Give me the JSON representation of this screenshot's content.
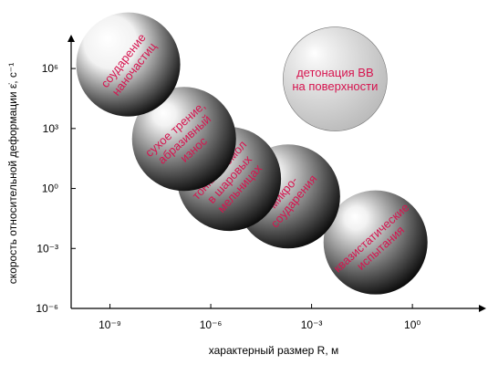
{
  "chart_data": {
    "type": "bubble",
    "xlabel": "характерный размер R, м",
    "ylabel": "скорость относительной деформации ε̇, с⁻¹",
    "xscale": "log",
    "yscale": "log",
    "xlim": [
      7e-11,
      130
    ],
    "ylim": [
      1e-06,
      40000000.0
    ],
    "xticks": [
      {
        "value": 1e-09,
        "label": "10⁻⁹"
      },
      {
        "value": 1e-06,
        "label": "10⁻⁶"
      },
      {
        "value": 0.001,
        "label": "10⁻³"
      },
      {
        "value": 1,
        "label": "10⁰"
      }
    ],
    "yticks": [
      {
        "value": 1e-06,
        "label": "10⁻⁶"
      },
      {
        "value": 0.001,
        "label": "10⁻³"
      },
      {
        "value": 1,
        "label": "10⁰"
      },
      {
        "value": 1000,
        "label": "10³"
      },
      {
        "value": 1000000,
        "label": "10⁶"
      }
    ],
    "label_color": "#d6144f",
    "points": [
      {
        "label": [
          "соударение",
          "наночастиц"
        ],
        "x": 3.5e-09,
        "y": 1600000,
        "color": "#000000"
      },
      {
        "label": [
          "сухое трение,",
          "абразивный",
          "износ"
        ],
        "x": 1.6e-07,
        "y": 300,
        "color": "#000000"
      },
      {
        "label": [
          "тонкий помол",
          "в шаровых",
          "мельницах"
        ],
        "x": 3.5e-06,
        "y": 3,
        "color": "#000000"
      },
      {
        "label": [
          "микро-",
          "соударения"
        ],
        "x": 0.0002,
        "y": 0.4,
        "color": "#000000"
      },
      {
        "label": [
          "квазистатические",
          "испытания"
        ],
        "x": 0.08,
        "y": 0.002,
        "color": "#000000"
      },
      {
        "label": [
          "детонация ВВ",
          "на поверхности"
        ],
        "x": 0.005,
        "y": 300000,
        "color": "#b8b8b8"
      }
    ]
  }
}
